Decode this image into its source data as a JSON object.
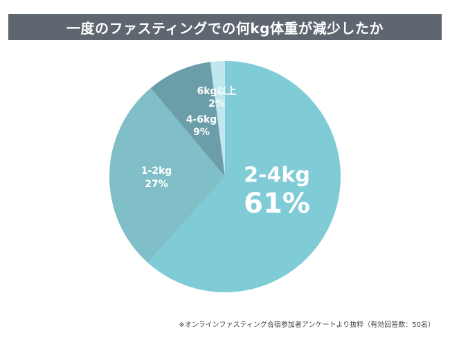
{
  "chart_data": {
    "type": "pie",
    "title": "一度のファスティングでの何kg体重が減少したか",
    "slices": [
      {
        "label": "2-4kg",
        "value": 61,
        "value_label": "61%",
        "color": "#7fcbd6"
      },
      {
        "label": "1-2kg",
        "value": 27,
        "value_label": "27%",
        "color": "#80bfc7"
      },
      {
        "label": "4-6kg",
        "value": 9,
        "value_label": "9%",
        "color": "#6b9ea9"
      },
      {
        "label": "6kg以上",
        "value": 2,
        "value_label": "2%",
        "color": "#c0e7ee"
      }
    ]
  },
  "footnote": "※オンラインファスティング合宿参加者アンケートより抜粋（有効回答数：50名）"
}
